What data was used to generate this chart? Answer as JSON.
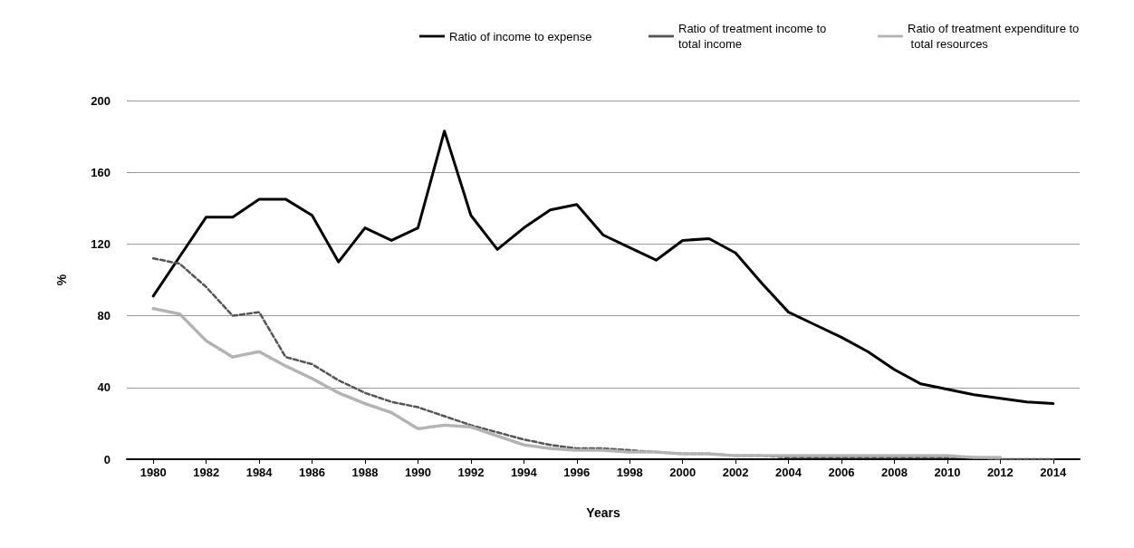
{
  "chart_data": {
    "type": "line",
    "xlabel": "Years",
    "ylabel": "%",
    "x": [
      1980,
      1981,
      1982,
      1983,
      1984,
      1985,
      1986,
      1987,
      1988,
      1989,
      1990,
      1991,
      1992,
      1993,
      1994,
      1995,
      1996,
      1997,
      1998,
      1999,
      2000,
      2001,
      2002,
      2003,
      2004,
      2005,
      2006,
      2007,
      2008,
      2009,
      2010,
      2011,
      2012,
      2013,
      2014
    ],
    "series": [
      {
        "name": "Ratio of income to expense",
        "color": "#000000",
        "line_style": "solid",
        "values": [
          91,
          113,
          135,
          135,
          145,
          145,
          136,
          110,
          129,
          122,
          129,
          183,
          136,
          117,
          129,
          139,
          142,
          125,
          118,
          111,
          122,
          123,
          115,
          98,
          82,
          75,
          68,
          60,
          50,
          42,
          39,
          36,
          34,
          32,
          31
        ]
      },
      {
        "name": "Ratio of treatment income to total income",
        "color": "#555555",
        "line_style": "dashed",
        "values": [
          112,
          109,
          96,
          80,
          82,
          57,
          53,
          44,
          37,
          32,
          29,
          24,
          19,
          15,
          11,
          8,
          6,
          6,
          5,
          4,
          3,
          3,
          2,
          2,
          1,
          1,
          1,
          1,
          1,
          1,
          1,
          1,
          0,
          0,
          0
        ]
      },
      {
        "name": "Ratio of treatment expenditure to total resources",
        "color": "#b3b3b3",
        "line_style": "dotted",
        "values": [
          84,
          81,
          66,
          57,
          60,
          52,
          45,
          37,
          31,
          26,
          17,
          19,
          18,
          13,
          8,
          6,
          5,
          5,
          4,
          4,
          3,
          3,
          2,
          2,
          2,
          2,
          2,
          2,
          2,
          2,
          2,
          1,
          1,
          null,
          null
        ]
      }
    ],
    "xlim": [
      1979,
      2015
    ],
    "xticks": [
      1980,
      1982,
      1984,
      1986,
      1988,
      1990,
      1992,
      1994,
      1996,
      1998,
      2000,
      2002,
      2004,
      2006,
      2008,
      2010,
      2012,
      2014
    ],
    "ylim": [
      0,
      200
    ],
    "yticks": [
      0,
      40,
      80,
      120,
      160,
      200
    ],
    "grid": "y",
    "legend": "top right",
    "marker": "none"
  }
}
